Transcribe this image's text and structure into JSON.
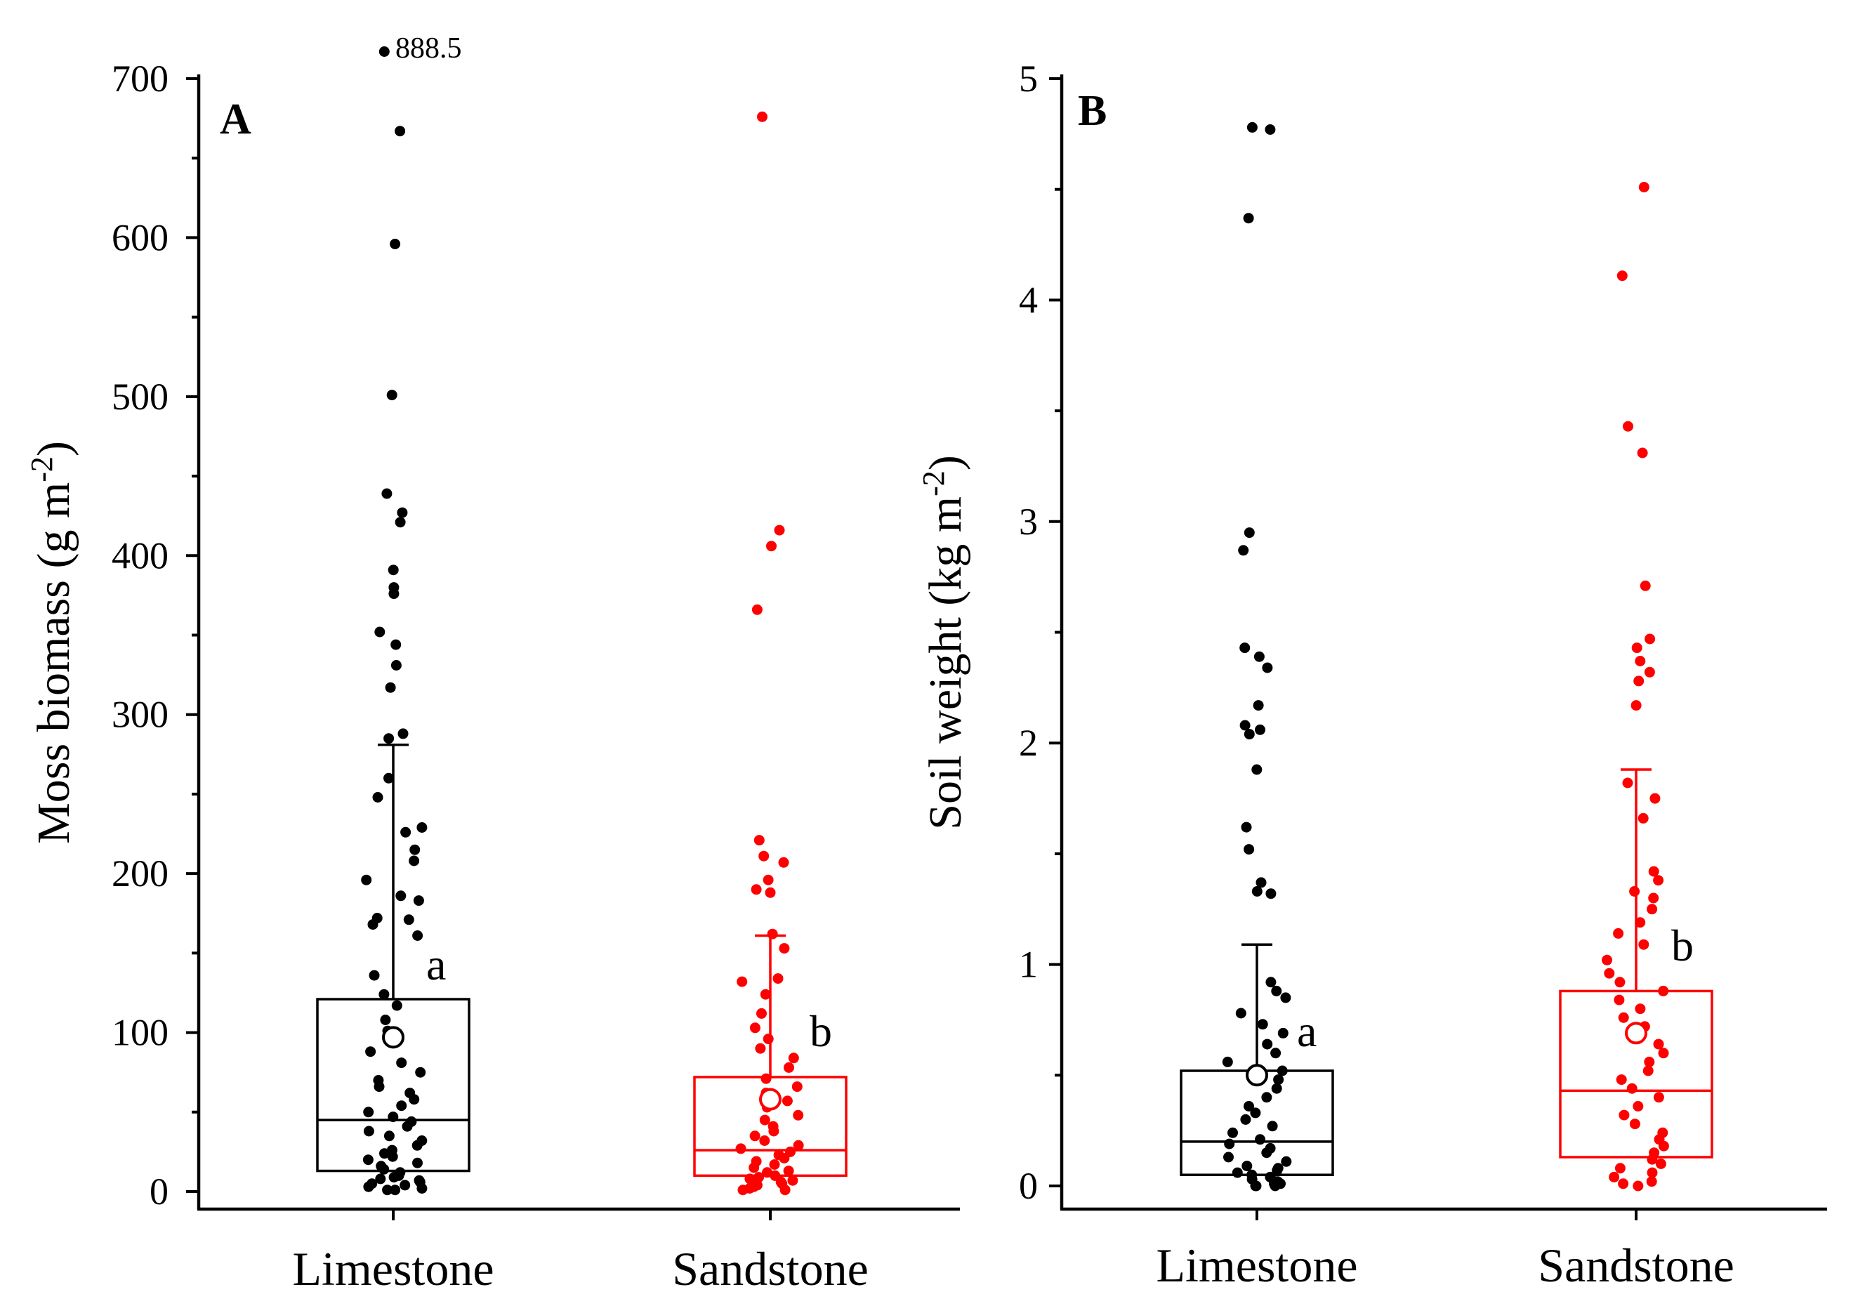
{
  "chart_data": [
    {
      "type": "box",
      "panel_label": "A",
      "ylabel": "Moss biomass (g m",
      "ylabel_sup": "-2",
      "ylabel_close": ")",
      "ylim": [
        0,
        700
      ],
      "yticks": [
        0,
        100,
        200,
        300,
        400,
        500,
        600,
        700
      ],
      "tick_labels": [
        "0",
        "100",
        "200",
        "300",
        "400",
        "500",
        "600",
        "700"
      ],
      "categories": [
        "Limestone",
        "Sandstone"
      ],
      "outlier_annotation": {
        "text": "888.5",
        "category": "Limestone",
        "plotted_at": 717
      },
      "series": [
        {
          "name": "Limestone",
          "color": "#000000",
          "sig_letter": "a",
          "box": {
            "q1": 13,
            "median": 45,
            "q3": 121,
            "mean": 97,
            "whisker_low": 0,
            "whisker_high": 281
          },
          "points": [
            717,
            667,
            596,
            501,
            439,
            427,
            421,
            391,
            380,
            376,
            352,
            344,
            331,
            317,
            288,
            285,
            260,
            248,
            229,
            226,
            215,
            208,
            196,
            186,
            183,
            172,
            171,
            168,
            161,
            136,
            124,
            117,
            108,
            101,
            96,
            88,
            81,
            75,
            70,
            66,
            62,
            58,
            54,
            50,
            47,
            44,
            41,
            38,
            35,
            32,
            29,
            26,
            24,
            22,
            20,
            18,
            16,
            14,
            12,
            10,
            9,
            8,
            7,
            6,
            5,
            4,
            3,
            2,
            1,
            1
          ]
        },
        {
          "name": "Sandstone",
          "color": "#ff0000",
          "sig_letter": "b",
          "box": {
            "q1": 10,
            "median": 26,
            "q3": 72,
            "mean": 58,
            "whisker_low": 0,
            "whisker_high": 161
          },
          "points": [
            676,
            416,
            406,
            366,
            221,
            211,
            207,
            196,
            190,
            188,
            162,
            153,
            134,
            132,
            124,
            112,
            103,
            96,
            90,
            84,
            78,
            71,
            66,
            62,
            57,
            53,
            48,
            45,
            41,
            38,
            35,
            32,
            29,
            27,
            25,
            23,
            21,
            19,
            17,
            15,
            13,
            12,
            10,
            9,
            8,
            7,
            6,
            5,
            4,
            3,
            2,
            1,
            1
          ]
        }
      ]
    },
    {
      "type": "box",
      "panel_label": "B",
      "ylabel": "Soil weight (kg m",
      "ylabel_sup": "-2",
      "ylabel_close": ")",
      "ylim": [
        0,
        5
      ],
      "yticks": [
        0,
        1,
        2,
        3,
        4,
        5
      ],
      "tick_labels": [
        "0",
        "1",
        "2",
        "3",
        "4",
        "5"
      ],
      "categories": [
        "Limestone",
        "Sandstone"
      ],
      "series": [
        {
          "name": "Limestone",
          "color": "#000000",
          "sig_letter": "a",
          "box": {
            "q1": 0.05,
            "median": 0.2,
            "q3": 0.52,
            "mean": 0.5,
            "whisker_low": 0,
            "whisker_high": 1.09
          },
          "points": [
            4.78,
            4.77,
            4.37,
            2.95,
            2.87,
            2.43,
            2.39,
            2.34,
            2.17,
            2.08,
            2.06,
            2.04,
            1.88,
            1.62,
            1.52,
            1.37,
            1.33,
            1.32,
            0.92,
            0.88,
            0.85,
            0.78,
            0.73,
            0.69,
            0.64,
            0.6,
            0.56,
            0.52,
            0.48,
            0.44,
            0.4,
            0.36,
            0.33,
            0.3,
            0.27,
            0.24,
            0.21,
            0.19,
            0.17,
            0.15,
            0.13,
            0.11,
            0.09,
            0.08,
            0.07,
            0.06,
            0.05,
            0.04,
            0.03,
            0.02,
            0.02,
            0.01,
            0.01,
            0.0,
            0.0,
            0.0
          ]
        },
        {
          "name": "Sandstone",
          "color": "#ff0000",
          "sig_letter": "b",
          "box": {
            "q1": 0.13,
            "median": 0.43,
            "q3": 0.88,
            "mean": 0.69,
            "whisker_low": 0,
            "whisker_high": 1.88
          },
          "points": [
            4.51,
            4.11,
            3.43,
            3.31,
            2.71,
            2.47,
            2.43,
            2.37,
            2.32,
            2.28,
            2.17,
            1.82,
            1.75,
            1.66,
            1.42,
            1.38,
            1.33,
            1.3,
            1.25,
            1.19,
            1.14,
            1.09,
            1.02,
            0.96,
            0.92,
            0.88,
            0.84,
            0.8,
            0.76,
            0.72,
            0.68,
            0.64,
            0.6,
            0.56,
            0.52,
            0.48,
            0.44,
            0.4,
            0.36,
            0.32,
            0.28,
            0.24,
            0.21,
            0.18,
            0.15,
            0.12,
            0.1,
            0.08,
            0.06,
            0.04,
            0.02,
            0.01,
            0.0
          ]
        }
      ]
    }
  ]
}
